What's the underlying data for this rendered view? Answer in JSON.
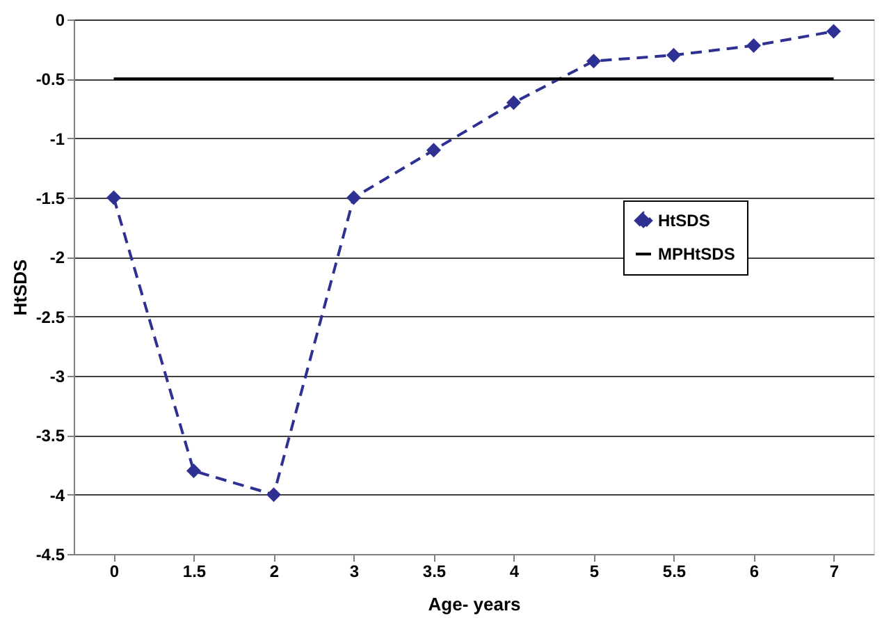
{
  "chart_data": {
    "type": "line",
    "xlabel": "Age- years",
    "ylabel": "HtSDS",
    "categories": [
      "0",
      "1.5",
      "2",
      "3",
      "3.5",
      "4",
      "5",
      "5.5",
      "6",
      "7"
    ],
    "series": [
      {
        "name": "HtSDS",
        "color": "#2e3192",
        "values": [
          -1.5,
          -3.8,
          -4,
          -1.5,
          -1.1,
          -0.7,
          -0.35,
          -0.3,
          -0.22,
          -0.1
        ],
        "marker": "diamond",
        "line_style": "dashed"
      },
      {
        "name": "MPHtSDS",
        "color": "#000000",
        "values": [
          -0.5,
          -0.5,
          -0.5,
          -0.5,
          -0.5,
          -0.5,
          -0.5,
          -0.5,
          -0.5,
          -0.5
        ],
        "marker": "none",
        "line_style": "solid"
      }
    ],
    "ylim": [
      -4.5,
      0
    ],
    "yticks": [
      -4.5,
      -4,
      -3.5,
      -3,
      -2.5,
      -2,
      -1.5,
      -1,
      -0.5,
      0
    ],
    "grid": "y",
    "legend": "right"
  }
}
